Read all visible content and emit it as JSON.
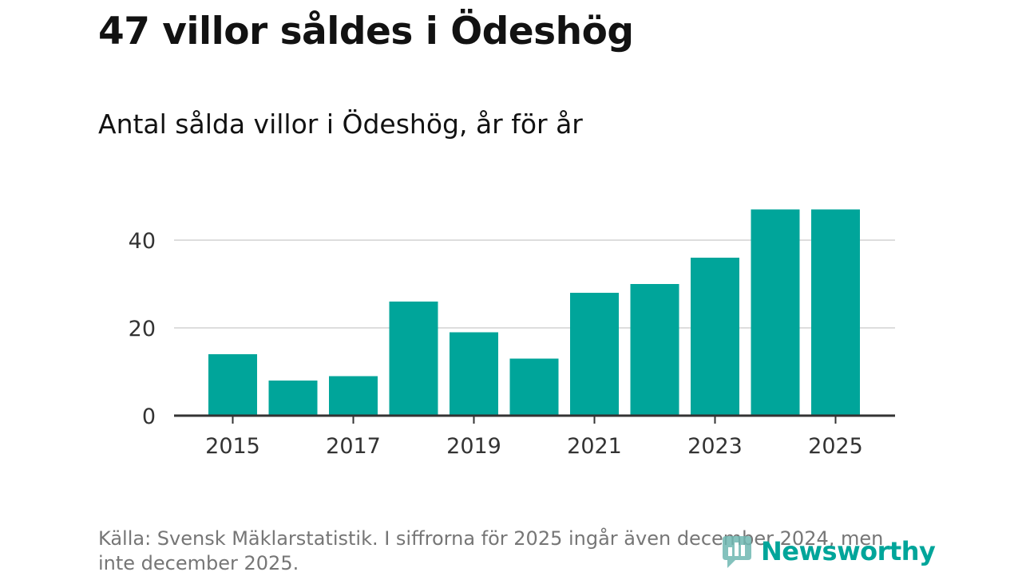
{
  "title": "47 villor såldes i Ödeshög",
  "subtitle": "Antal sålda villor i Ödeshög, år för år",
  "source": "Källa: Svensk Mäklarstatistik. I siffrorna för 2025 ingår även december 2024, men inte december 2025.",
  "brand": {
    "name": "Newsworthy",
    "color": "#00a59a"
  },
  "chart_data": {
    "type": "bar",
    "title": "Antal sålda villor i Ödeshög, år för år",
    "categories": [
      "2015",
      "2016",
      "2017",
      "2018",
      "2019",
      "2020",
      "2021",
      "2022",
      "2023",
      "2024",
      "2025"
    ],
    "values": [
      14,
      8,
      9,
      26,
      19,
      13,
      28,
      30,
      36,
      47,
      47
    ],
    "xticks": [
      "2015",
      "2017",
      "2019",
      "2021",
      "2023",
      "2025"
    ],
    "yticks": [
      0,
      20,
      40
    ],
    "ylim": [
      0,
      50
    ],
    "xlabel": "",
    "ylabel": "",
    "grid": true,
    "bar_color": "#00a59a"
  }
}
